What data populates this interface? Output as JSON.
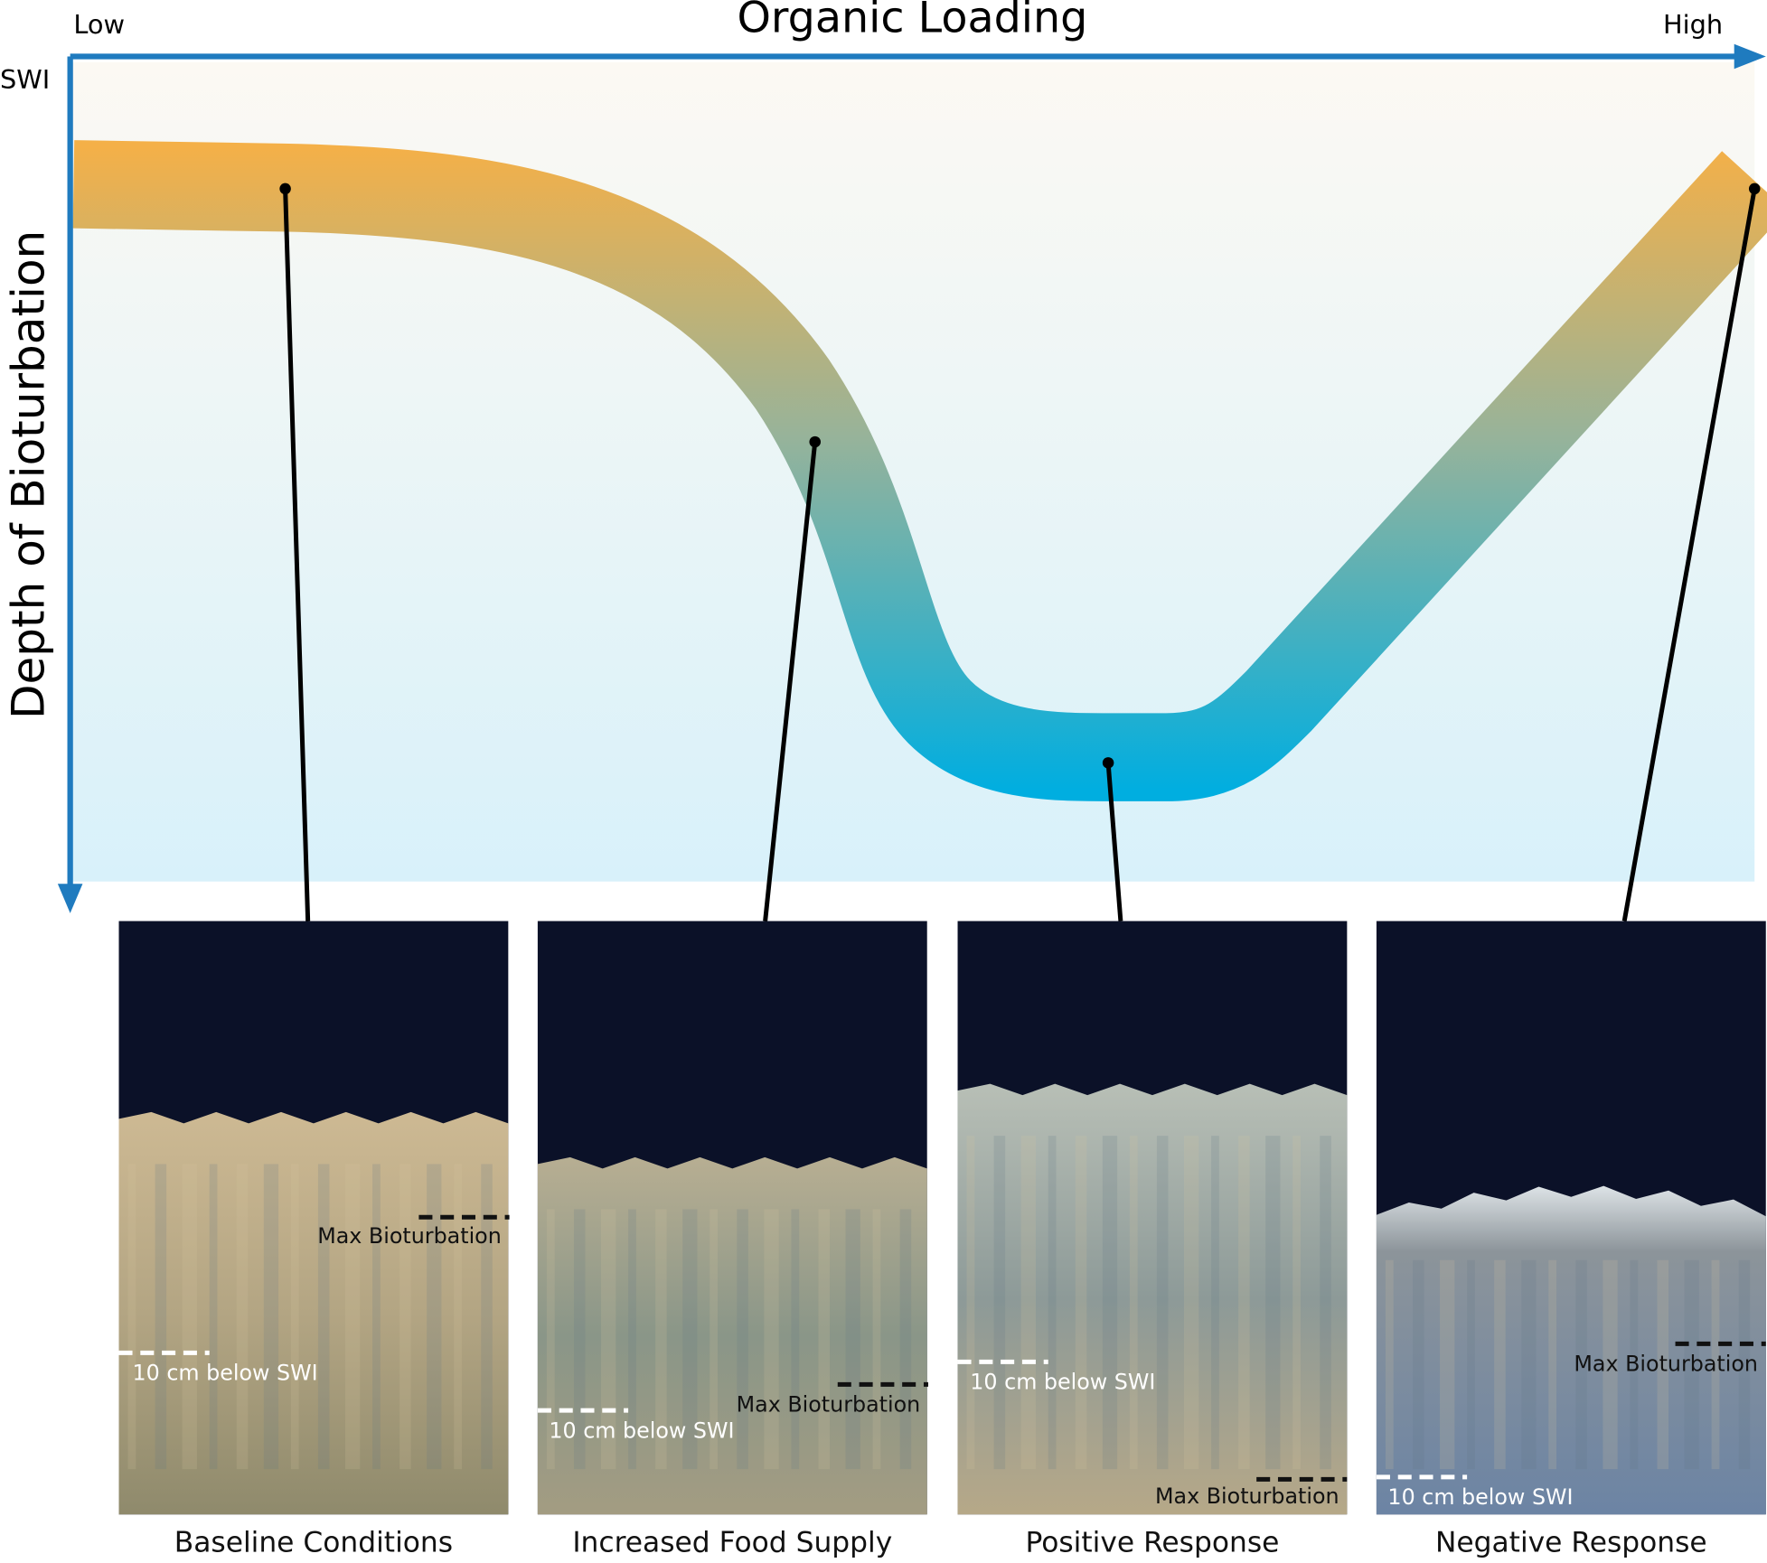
{
  "title": "Organic Loading",
  "axis": {
    "low": "Low",
    "high": "High",
    "origin": "SWI",
    "y_label": "Depth of Bioturbation"
  },
  "panels": [
    {
      "caption": "Baseline Conditions",
      "max_label": "Max Bioturbation",
      "swi_label": "10 cm below SWI"
    },
    {
      "caption": "Increased Food Supply",
      "max_label": "Max Bioturbation",
      "swi_label": "10 cm below SWI"
    },
    {
      "caption": "Positive Response",
      "max_label": "Max Bioturbation",
      "swi_label": "10 cm below SWI"
    },
    {
      "caption": "Negative Response",
      "max_label": "Max Bioturbation",
      "swi_label": "10 cm below SWI"
    }
  ]
}
